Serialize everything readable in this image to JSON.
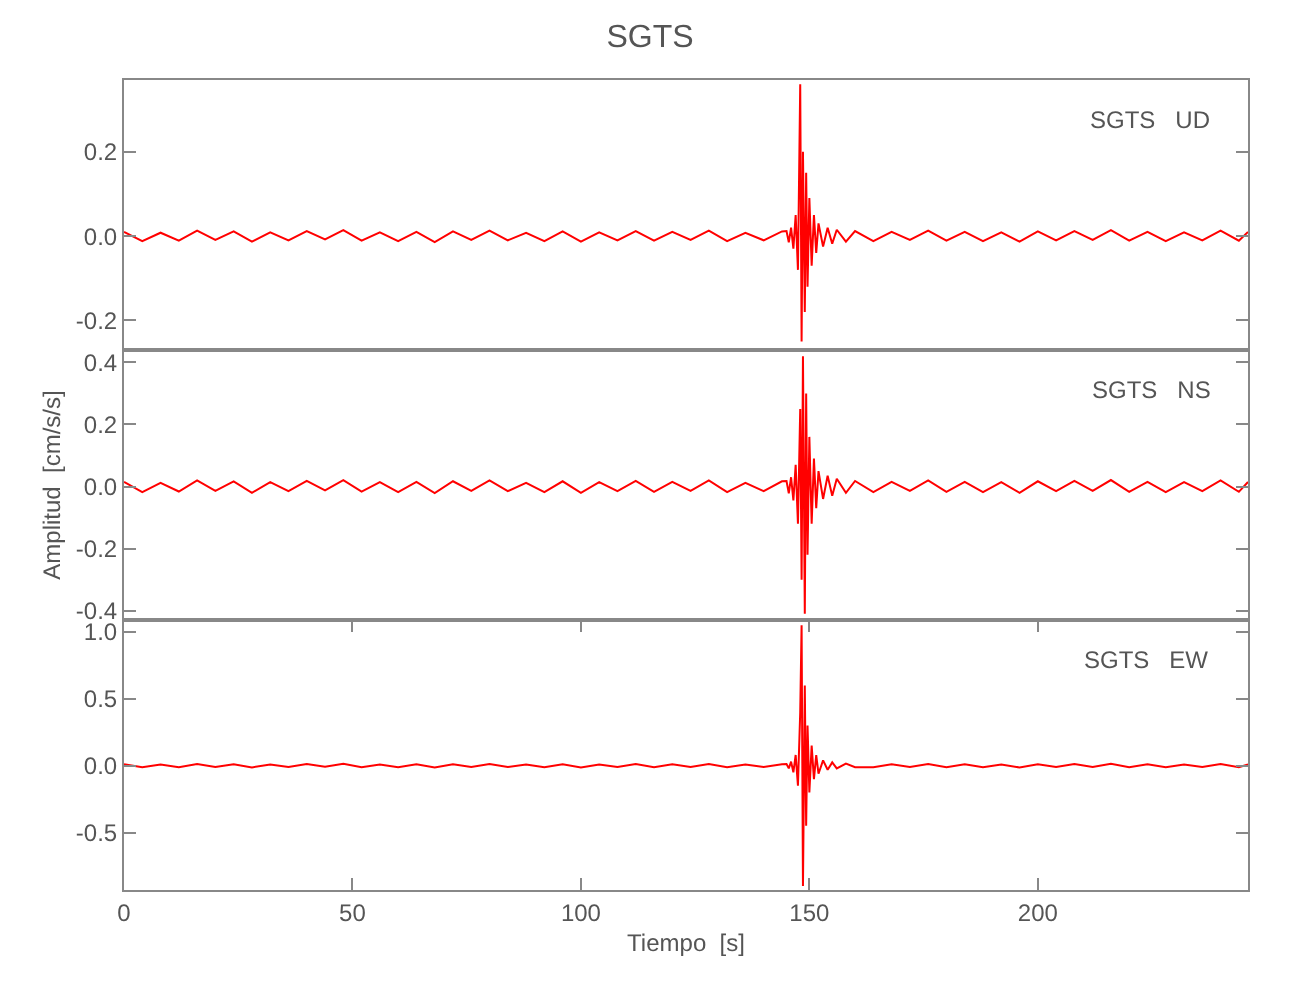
{
  "chart_data": [
    {
      "type": "line",
      "title": "SGTS",
      "annotations": [
        "SGTS   UD"
      ],
      "tick_labels": "y",
      "color": "#ff0000",
      "x": [
        0,
        4,
        8,
        12,
        16,
        20,
        24,
        28,
        32,
        36,
        40,
        44,
        48,
        52,
        56,
        60,
        64,
        68,
        72,
        76,
        80,
        84,
        88,
        92,
        96,
        100,
        104,
        108,
        112,
        116,
        120,
        124,
        128,
        132,
        136,
        140,
        144,
        145,
        145.5,
        146,
        146.5,
        147,
        147.5,
        148,
        148.3,
        148.6,
        149,
        149.3,
        149.6,
        150,
        150.5,
        151,
        151.5,
        152,
        153,
        154,
        155,
        156,
        158,
        160,
        164,
        168,
        172,
        176,
        180,
        184,
        188,
        192,
        196,
        200,
        204,
        208,
        212,
        216,
        220,
        224,
        228,
        232,
        236,
        240,
        244,
        246
      ],
      "values": [
        0.01,
        -0.012,
        0.008,
        -0.011,
        0.013,
        -0.009,
        0.011,
        -0.013,
        0.009,
        -0.01,
        0.012,
        -0.008,
        0.014,
        -0.011,
        0.009,
        -0.012,
        0.01,
        -0.014,
        0.011,
        -0.009,
        0.013,
        -0.01,
        0.008,
        -0.012,
        0.011,
        -0.013,
        0.009,
        -0.01,
        0.012,
        -0.011,
        0.01,
        -0.009,
        0.013,
        -0.012,
        0.008,
        -0.01,
        0.011,
        0.012,
        -0.015,
        0.02,
        -0.03,
        0.05,
        -0.08,
        0.36,
        -0.25,
        0.2,
        -0.18,
        0.15,
        -0.12,
        0.09,
        -0.07,
        0.05,
        -0.04,
        0.03,
        -0.025,
        0.02,
        -0.018,
        0.015,
        -0.013,
        0.012,
        -0.012,
        0.01,
        -0.009,
        0.013,
        -0.011,
        0.01,
        -0.012,
        0.009,
        -0.013,
        0.011,
        -0.01,
        0.012,
        -0.009,
        0.014,
        -0.011,
        0.01,
        -0.012,
        0.009,
        -0.01,
        0.013,
        -0.011,
        0.01
      ],
      "xlim": [
        0,
        246
      ],
      "ylim": [
        -0.27,
        0.37
      ],
      "yticks": [
        {
          "value": -0.2,
          "label": "-0.2"
        },
        {
          "value": 0,
          "label": "0.0"
        },
        {
          "value": 0.2,
          "label": "0.2"
        }
      ]
    },
    {
      "type": "line",
      "ylabel": "Amplitud  [cm/s/s]",
      "annotations": [
        "SGTS   NS"
      ],
      "tick_labels": "y",
      "color": "#ff0000",
      "x": [
        0,
        4,
        8,
        12,
        16,
        20,
        24,
        28,
        32,
        36,
        40,
        44,
        48,
        52,
        56,
        60,
        64,
        68,
        72,
        76,
        80,
        84,
        88,
        92,
        96,
        100,
        104,
        108,
        112,
        116,
        120,
        124,
        128,
        132,
        136,
        140,
        144,
        145,
        145.5,
        146,
        146.5,
        147,
        147.5,
        148,
        148.3,
        148.6,
        149,
        149.3,
        149.6,
        150,
        150.5,
        151,
        151.5,
        152,
        153,
        154,
        155,
        156,
        158,
        160,
        164,
        168,
        172,
        176,
        180,
        184,
        188,
        192,
        196,
        200,
        204,
        208,
        212,
        216,
        220,
        224,
        228,
        232,
        236,
        240,
        244,
        246
      ],
      "values": [
        0.015,
        -0.018,
        0.012,
        -0.016,
        0.02,
        -0.014,
        0.017,
        -0.02,
        0.014,
        -0.015,
        0.018,
        -0.012,
        0.021,
        -0.016,
        0.014,
        -0.018,
        0.015,
        -0.021,
        0.017,
        -0.014,
        0.02,
        -0.015,
        0.012,
        -0.018,
        0.017,
        -0.02,
        0.014,
        -0.015,
        0.018,
        -0.017,
        0.015,
        -0.014,
        0.02,
        -0.018,
        0.012,
        -0.015,
        0.017,
        0.018,
        -0.022,
        0.03,
        -0.045,
        0.07,
        -0.12,
        0.25,
        -0.3,
        0.42,
        -0.41,
        0.3,
        -0.22,
        0.16,
        -0.12,
        0.09,
        -0.07,
        0.05,
        -0.04,
        0.035,
        -0.03,
        0.025,
        -0.02,
        0.018,
        -0.018,
        0.015,
        -0.014,
        0.02,
        -0.017,
        0.015,
        -0.018,
        0.014,
        -0.02,
        0.017,
        -0.015,
        0.018,
        -0.014,
        0.021,
        -0.017,
        0.015,
        -0.018,
        0.014,
        -0.015,
        0.02,
        -0.017,
        0.015
      ],
      "xlim": [
        0,
        246
      ],
      "ylim": [
        -0.43,
        0.44
      ],
      "yticks": [
        {
          "value": -0.4,
          "label": "-0.4"
        },
        {
          "value": -0.2,
          "label": "-0.2"
        },
        {
          "value": 0,
          "label": "0.0"
        },
        {
          "value": 0.2,
          "label": "0.2"
        },
        {
          "value": 0.4,
          "label": "0.4"
        }
      ]
    },
    {
      "type": "line",
      "xlabel": "Tiempo  [s]",
      "annotations": [
        "SGTS   EW"
      ],
      "color": "#ff0000",
      "x": [
        0,
        4,
        8,
        12,
        16,
        20,
        24,
        28,
        32,
        36,
        40,
        44,
        48,
        52,
        56,
        60,
        64,
        68,
        72,
        76,
        80,
        84,
        88,
        92,
        96,
        100,
        104,
        108,
        112,
        116,
        120,
        124,
        128,
        132,
        136,
        140,
        144,
        145,
        145.5,
        146,
        146.5,
        147,
        147.5,
        148,
        148.3,
        148.6,
        149,
        149.3,
        149.6,
        150,
        150.5,
        151,
        151.5,
        152,
        153,
        154,
        155,
        156,
        158,
        160,
        164,
        168,
        172,
        176,
        180,
        184,
        188,
        192,
        196,
        200,
        204,
        208,
        212,
        216,
        220,
        224,
        228,
        232,
        236,
        240,
        244,
        246
      ],
      "values": [
        0.01,
        -0.012,
        0.008,
        -0.011,
        0.013,
        -0.009,
        0.011,
        -0.013,
        0.009,
        -0.01,
        0.012,
        -0.008,
        0.014,
        -0.011,
        0.009,
        -0.012,
        0.01,
        -0.014,
        0.011,
        -0.009,
        0.013,
        -0.01,
        0.008,
        -0.012,
        0.011,
        -0.013,
        0.009,
        -0.01,
        0.012,
        -0.011,
        0.01,
        -0.009,
        0.013,
        -0.012,
        0.008,
        -0.01,
        0.011,
        0.012,
        -0.02,
        0.03,
        -0.05,
        0.08,
        -0.15,
        0.4,
        1.05,
        -0.9,
        0.6,
        -0.45,
        0.3,
        -0.2,
        0.15,
        -0.1,
        0.08,
        -0.06,
        0.04,
        -0.03,
        0.025,
        -0.02,
        0.015,
        -0.012,
        -0.012,
        0.01,
        -0.009,
        0.013,
        -0.011,
        0.01,
        -0.012,
        0.009,
        -0.013,
        0.011,
        -0.01,
        0.012,
        -0.009,
        0.014,
        -0.011,
        0.01,
        -0.012,
        0.009,
        -0.01,
        0.013,
        -0.011,
        0.01
      ],
      "xlim": [
        0,
        246
      ],
      "xticks": [
        0,
        50,
        100,
        150,
        200
      ],
      "ylim": [
        -0.93,
        1.09
      ],
      "yticks": [
        {
          "value": -0.5,
          "label": "-0.5"
        },
        {
          "value": 0,
          "label": "0.0"
        },
        {
          "value": 0.5,
          "label": "0.5"
        },
        {
          "value": 1,
          "label": "1.0"
        }
      ]
    }
  ]
}
